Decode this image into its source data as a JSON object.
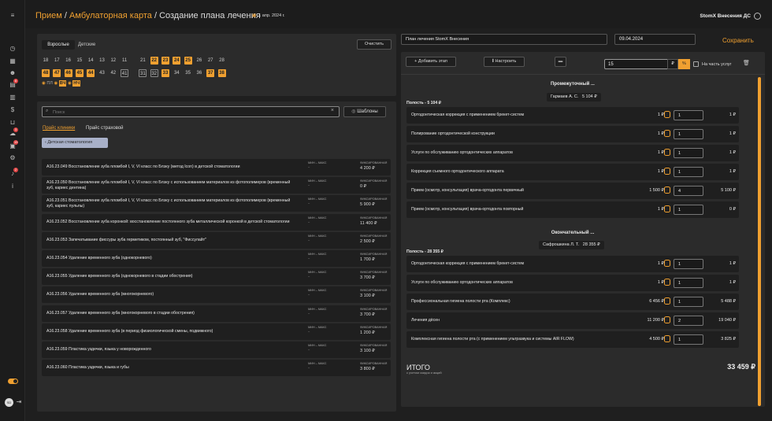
{
  "sidebar": {
    "badges": {
      "docs": "8",
      "chat": "3",
      "cal": "19",
      "notif": "2"
    }
  },
  "header": {
    "crumb1": "Прием",
    "sep": "/",
    "crumb2": "Амбулаторная карта",
    "current": "Создание плана лечения",
    "date": "1 апр. 2024 г.",
    "user": "StomX Внесения ДС"
  },
  "teeth": {
    "tabs": [
      "Взрослые",
      "Детские"
    ],
    "clear": "Очистить",
    "row1": [
      "18",
      "17",
      "16",
      "15",
      "14",
      "13",
      "12",
      "11",
      "21",
      "22",
      "23",
      "24",
      "25",
      "26",
      "27",
      "28"
    ],
    "row2": [
      "48",
      "47",
      "46",
      "45",
      "44",
      "43",
      "42",
      "41",
      "31",
      "32",
      "33",
      "34",
      "35",
      "36",
      "37",
      "38"
    ],
    "row1_sel": [
      false,
      false,
      false,
      false,
      false,
      false,
      false,
      false,
      false,
      true,
      true,
      true,
      true,
      false,
      false,
      false
    ],
    "row2_sel": [
      true,
      true,
      true,
      true,
      true,
      false,
      false,
      false,
      false,
      false,
      true,
      false,
      false,
      false,
      true,
      true
    ],
    "row2_out": [
      false,
      false,
      false,
      false,
      false,
      false,
      false,
      true,
      true,
      true,
      false,
      false,
      false,
      false,
      false,
      false
    ],
    "extra": [
      "ПЛ",
      "ВЧ",
      "НЧ"
    ]
  },
  "search": {
    "placeholder": "Поиск",
    "templates": "Шаблоны",
    "price_clinic": "Прайс клиники",
    "price_ins": "Прайс страховой",
    "category": "Детская стоматология"
  },
  "services": [
    {
      "name": "A16.23.049 Восстановление зуба пломбой I, V, VI класс по Блэку (метод Icon) в детской стоматологии",
      "mm": "МИН – МАКС",
      "mmv": "–",
      "fx": "ФИКСИРОВАННАЯ",
      "price": "4 200 ₽"
    },
    {
      "name": "A16.23.050 Восстановление зуба пломбой I, V, VI класс по Блэку с использованием материалов из фотополимеров (временный зуб, кариес дентина)",
      "mm": "МИН – МАКС",
      "mmv": "–",
      "fx": "ФИКСИРОВАННАЯ",
      "price": "0 ₽"
    },
    {
      "name": "A16.23.051 Восстановление зуба пломбой I, V, VI класс по Блэку с использованием материалов из фотополимеров (временный зуб, кариес пульпы)",
      "mm": "МИН – МАКС",
      "mmv": "–",
      "fx": "ФИКСИРОВАННАЯ",
      "price": "5 900 ₽"
    },
    {
      "name": "A16.23.052 Восстановление зуба коронкой: восстановление постоянного зуба металлической коронкой в детской стоматологии",
      "mm": "МИН – МАКС",
      "mmv": "–",
      "fx": "ФИКСИРОВАННАЯ",
      "price": "11 400 ₽"
    },
    {
      "name": "A16.23.053 Запечатывание фиссуры зуба герметиком, постоянный зуб, \"Фиссулайт\"",
      "mm": "МИН – МАКС",
      "mmv": "–",
      "fx": "ФИКСИРОВАННАЯ",
      "price": "2 500 ₽"
    },
    {
      "name": "A16.23.054 Удаление временного зуба (однокорневого)",
      "mm": "МИН – МАКС",
      "mmv": "–",
      "fx": "ФИКСИРОВАННАЯ",
      "price": "1 700 ₽"
    },
    {
      "name": "A16.23.055 Удаление временного зуба (однокорневого в стадии обострения)",
      "mm": "МИН – МАКС",
      "mmv": "–",
      "fx": "ФИКСИРОВАННАЯ",
      "price": "3 700 ₽"
    },
    {
      "name": "A16.23.056 Удаление временного зуба (многокорневого)",
      "mm": "МИН – МАКС",
      "mmv": "–",
      "fx": "ФИКСИРОВАННАЯ",
      "price": "3 100 ₽"
    },
    {
      "name": "A16.23.057 Удаление временного зуба (многокорневого в стадии обострения)",
      "mm": "МИН – МАКС",
      "mmv": "–",
      "fx": "ФИКСИРОВАННАЯ",
      "price": "3 700 ₽"
    },
    {
      "name": "A16.23.058 Удаление временного зуба (в период физиологической смены, подвижного)",
      "mm": "МИН – МАКС",
      "mmv": "–",
      "fx": "ФИКСИРОВАННАЯ",
      "price": "1 200 ₽"
    },
    {
      "name": "A16.23.059 Пластика уздечки, языка у новорожденного",
      "mm": "МИН – МАКС",
      "mmv": "–",
      "fx": "ФИКСИРОВАННАЯ",
      "price": "3 100 ₽"
    },
    {
      "name": "A16.23.060 Пластика уздечки, языка и губы",
      "mm": "МИН – МАКС",
      "mmv": "–",
      "fx": "ФИКСИРОВАННАЯ",
      "price": "3 800 ₽"
    }
  ],
  "plan": {
    "name": "План лечения StomX Внесения",
    "date": "09.04.2024",
    "save": "Сохранить",
    "add_stage": "Добавить этап",
    "configure": "Настроить",
    "discount": "15",
    "currency": "₽",
    "percent": "%",
    "partial": "На часть услуг",
    "stage1": {
      "title": "Промежуточный ...",
      "doctor": "Гармаев А. С.",
      "doctor_sum": "5 104 ₽",
      "subtotal": "Полость - 5 104 ₽",
      "rows": [
        {
          "name": "Ортодонтическая коррекция с применением брекет-систем",
          "price": "1 ₽",
          "qty": "1",
          "total": "1 ₽"
        },
        {
          "name": "Полирование ортодонтической конструкции",
          "price": "1 ₽",
          "qty": "1",
          "total": "1 ₽"
        },
        {
          "name": "Услуги по обслуживанию ортодонтических аппаратов",
          "price": "1 ₽",
          "qty": "1",
          "total": "1 ₽"
        },
        {
          "name": "Коррекция съемного ортодонтического аппарата",
          "price": "1 ₽",
          "qty": "1",
          "total": "1 ₽"
        },
        {
          "name": "Прием (осмотр, консультация) врача-ортодонта первичный",
          "price": "1 500 ₽",
          "qty": "4",
          "total": "5 100 ₽"
        },
        {
          "name": "Прием (осмотр, консультация) врача-ортодонта повторный",
          "price": "1 ₽",
          "qty": "1",
          "total": "0 ₽"
        }
      ]
    },
    "stage2": {
      "title": "Окончательный ...",
      "doctor": "Сафрошкина Л. Т.",
      "doctor_sum": "28 355 ₽",
      "subtotal": "Полость - 28 355 ₽",
      "rows": [
        {
          "name": "Ортодонтическая коррекция с применением брекет-систем",
          "price": "1 ₽",
          "qty": "1",
          "total": "1 ₽"
        },
        {
          "name": "Услуги по обслуживанию ортодонтических аппаратов",
          "price": "1 ₽",
          "qty": "1",
          "total": "1 ₽"
        },
        {
          "name": "Профессиональная гигиена полости рта (Комплекс)",
          "price": "6 456 ₽",
          "qty": "1",
          "total": "5 488 ₽"
        },
        {
          "name": "Лечения дёсен",
          "price": "11 200 ₽",
          "qty": "2",
          "total": "19 040 ₽"
        },
        {
          "name": "Комплексная гигиена полости рта (с применением ультразвука и системы AIR FLOW)",
          "price": "4 500 ₽",
          "qty": "1",
          "total": "3 825 ₽"
        }
      ]
    },
    "total_label": "ИТОГО",
    "total_note": "с учетом скидок и акций",
    "total": "33 459 ₽"
  }
}
